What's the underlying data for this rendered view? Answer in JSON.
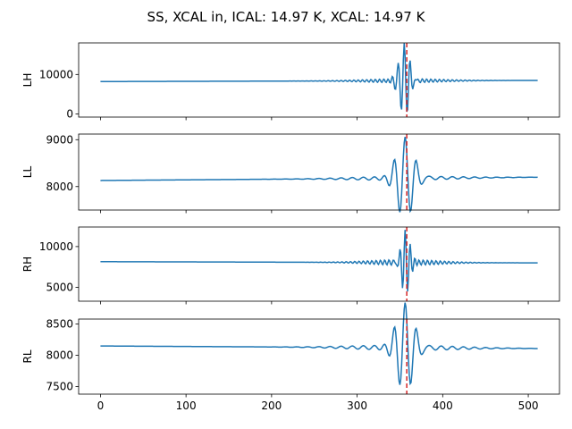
{
  "chart_data": {
    "type": "line",
    "title": "SS, XCAL in, ICAL: 14.97 K, XCAL: 14.97 K",
    "x_range": [
      0,
      511
    ],
    "xlim": [
      -25.5,
      536.5
    ],
    "xticks": [
      0,
      100,
      200,
      300,
      400,
      500
    ],
    "line_color": "#1f77b4",
    "marker_color": "#d62728",
    "marker_x": 358,
    "panels": [
      {
        "ylabel": "LH",
        "ylim": [
          -800,
          18000
        ],
        "yticks": [
          0,
          10000
        ],
        "baseline_start": 8200,
        "baseline_end": 8500,
        "center": 355,
        "peak_amp": 9500,
        "decay": 6,
        "period": 7,
        "ripple": 500,
        "ripple_period": 5,
        "ripple_width": 45
      },
      {
        "ylabel": "LL",
        "ylim": [
          7500,
          9120
        ],
        "yticks": [
          8000,
          9000
        ],
        "baseline_start": 8130,
        "baseline_end": 8200,
        "center": 356,
        "peak_amp": 880,
        "decay": 10,
        "period": 13,
        "ripple": 40,
        "ripple_period": 13,
        "ripple_width": 60
      },
      {
        "ylabel": "RH",
        "ylim": [
          3300,
          12400
        ],
        "yticks": [
          5000,
          10000
        ],
        "baseline_start": 8150,
        "baseline_end": 8000,
        "center": 356,
        "peak_amp": 4000,
        "decay": 5,
        "period": 6,
        "ripple": 350,
        "ripple_period": 5,
        "ripple_width": 40
      },
      {
        "ylabel": "RL",
        "ylim": [
          7380,
          8580
        ],
        "yticks": [
          7500,
          8000,
          8500
        ],
        "baseline_start": 8150,
        "baseline_end": 8110,
        "center": 356,
        "peak_amp": 720,
        "decay": 10,
        "period": 13,
        "ripple": 40,
        "ripple_period": 13,
        "ripple_width": 60
      }
    ]
  }
}
